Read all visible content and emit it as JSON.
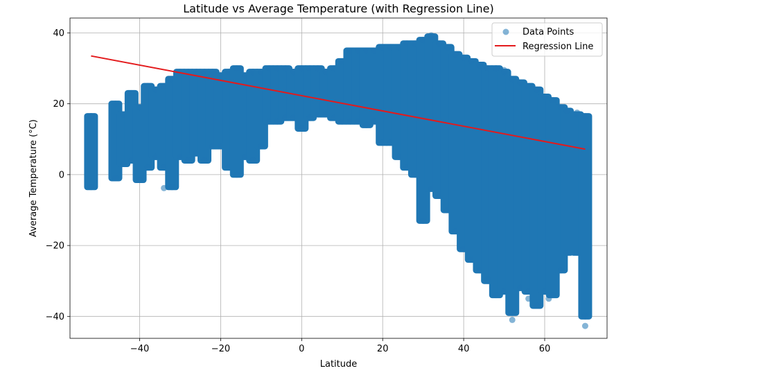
{
  "chart_data": {
    "type": "scatter",
    "title": "Latitude vs Average Temperature (with Regression Line)",
    "xlabel": "Latitude",
    "ylabel": "Average Temperature (°C)",
    "xlim": [
      -57.2,
      75.4
    ],
    "ylim": [
      -46.2,
      44.2
    ],
    "xticks": [
      -40,
      -20,
      0,
      20,
      40,
      60
    ],
    "yticks": [
      -40,
      -20,
      0,
      20,
      40
    ],
    "xtick_labels": [
      "−40",
      "−20",
      "0",
      "20",
      "40",
      "60"
    ],
    "ytick_labels": [
      "−40",
      "−20",
      "0",
      "20",
      "40"
    ],
    "grid": true,
    "legend": {
      "placement": "top-right",
      "entries": [
        "Data Points",
        "Regression Line"
      ]
    },
    "colors": {
      "points": "#1f77b4",
      "regression": "#e31a1c",
      "grid": "#b0b0b0"
    },
    "series": [
      {
        "name": "Data Points",
        "kind": "scatter",
        "columns": [
          {
            "x": -52,
            "ymin": -3.5,
            "ymax": 16.5
          },
          {
            "x": -46,
            "ymin": -1,
            "ymax": 20
          },
          {
            "x": -44,
            "ymin": 3,
            "ymax": 17
          },
          {
            "x": -42,
            "ymin": 4,
            "ymax": 23
          },
          {
            "x": -40,
            "ymin": -1.5,
            "ymax": 19
          },
          {
            "x": -38,
            "ymin": 2,
            "ymax": 25
          },
          {
            "x": -36,
            "ymin": 5,
            "ymax": 24
          },
          {
            "x": -34,
            "ymin": 2,
            "ymax": 25
          },
          {
            "x": -32,
            "ymin": -3.5,
            "ymax": 27
          },
          {
            "x": -30,
            "ymin": 5,
            "ymax": 29
          },
          {
            "x": -28,
            "ymin": 4,
            "ymax": 29
          },
          {
            "x": -26,
            "ymin": 6,
            "ymax": 29
          },
          {
            "x": -24,
            "ymin": 4,
            "ymax": 29
          },
          {
            "x": -22,
            "ymin": 8,
            "ymax": 29
          },
          {
            "x": -20,
            "ymin": 8,
            "ymax": 28
          },
          {
            "x": -18,
            "ymin": 2,
            "ymax": 29
          },
          {
            "x": -16,
            "ymin": 0,
            "ymax": 30
          },
          {
            "x": -14,
            "ymin": 5,
            "ymax": 28
          },
          {
            "x": -12,
            "ymin": 4,
            "ymax": 29
          },
          {
            "x": -10,
            "ymin": 8,
            "ymax": 29
          },
          {
            "x": -8,
            "ymin": 15,
            "ymax": 30
          },
          {
            "x": -6,
            "ymin": 15,
            "ymax": 30
          },
          {
            "x": -4,
            "ymin": 16,
            "ymax": 30
          },
          {
            "x": -2,
            "ymin": 16,
            "ymax": 29
          },
          {
            "x": 0,
            "ymin": 13,
            "ymax": 30
          },
          {
            "x": 2,
            "ymin": 16,
            "ymax": 30
          },
          {
            "x": 4,
            "ymin": 17,
            "ymax": 30
          },
          {
            "x": 6,
            "ymin": 17,
            "ymax": 29
          },
          {
            "x": 8,
            "ymin": 16,
            "ymax": 30
          },
          {
            "x": 10,
            "ymin": 15,
            "ymax": 32
          },
          {
            "x": 12,
            "ymin": 15,
            "ymax": 35
          },
          {
            "x": 14,
            "ymin": 15,
            "ymax": 35
          },
          {
            "x": 16,
            "ymin": 14,
            "ymax": 35
          },
          {
            "x": 18,
            "ymin": 15,
            "ymax": 35
          },
          {
            "x": 20,
            "ymin": 9,
            "ymax": 36
          },
          {
            "x": 22,
            "ymin": 9,
            "ymax": 36
          },
          {
            "x": 24,
            "ymin": 5,
            "ymax": 36
          },
          {
            "x": 26,
            "ymin": 2,
            "ymax": 37
          },
          {
            "x": 28,
            "ymin": 0,
            "ymax": 37
          },
          {
            "x": 30,
            "ymin": -13,
            "ymax": 38
          },
          {
            "x": 32,
            "ymin": -4,
            "ymax": 39
          },
          {
            "x": 34,
            "ymin": -6,
            "ymax": 37
          },
          {
            "x": 36,
            "ymin": -10,
            "ymax": 36
          },
          {
            "x": 38,
            "ymin": -16,
            "ymax": 34
          },
          {
            "x": 40,
            "ymin": -21,
            "ymax": 33
          },
          {
            "x": 42,
            "ymin": -24,
            "ymax": 32
          },
          {
            "x": 44,
            "ymin": -27,
            "ymax": 31
          },
          {
            "x": 46,
            "ymin": -30,
            "ymax": 30
          },
          {
            "x": 48,
            "ymin": -34,
            "ymax": 30
          },
          {
            "x": 50,
            "ymin": -33,
            "ymax": 29
          },
          {
            "x": 52,
            "ymin": -39,
            "ymax": 27
          },
          {
            "x": 54,
            "ymin": -32,
            "ymax": 26
          },
          {
            "x": 56,
            "ymin": -33,
            "ymax": 25
          },
          {
            "x": 58,
            "ymin": -37,
            "ymax": 24
          },
          {
            "x": 60,
            "ymin": -33,
            "ymax": 22
          },
          {
            "x": 62,
            "ymin": -34,
            "ymax": 21
          },
          {
            "x": 64,
            "ymin": -27,
            "ymax": 19
          },
          {
            "x": 65.5,
            "ymin": -22,
            "ymax": 18
          },
          {
            "x": 68,
            "ymin": -22,
            "ymax": 17
          },
          {
            "x": 70,
            "ymin": -40,
            "ymax": 16.5
          }
        ],
        "points": [
          {
            "x": 52,
            "y": -41
          },
          {
            "x": 70,
            "y": -42.7
          },
          {
            "x": 61,
            "y": -35
          },
          {
            "x": 56,
            "y": -35
          },
          {
            "x": 46,
            "y": -29.5
          },
          {
            "x": -52,
            "y": 16.5
          },
          {
            "x": 32,
            "y": 39.3
          },
          {
            "x": 44,
            "y": 30.8
          },
          {
            "x": 48,
            "y": 30
          },
          {
            "x": 50,
            "y": 29.5
          },
          {
            "x": 68,
            "y": 17.5
          },
          {
            "x": -34,
            "y": -3.8
          }
        ]
      },
      {
        "name": "Regression Line",
        "kind": "line",
        "x": [
          -52,
          70
        ],
        "y": [
          33.5,
          7.2
        ]
      }
    ]
  }
}
